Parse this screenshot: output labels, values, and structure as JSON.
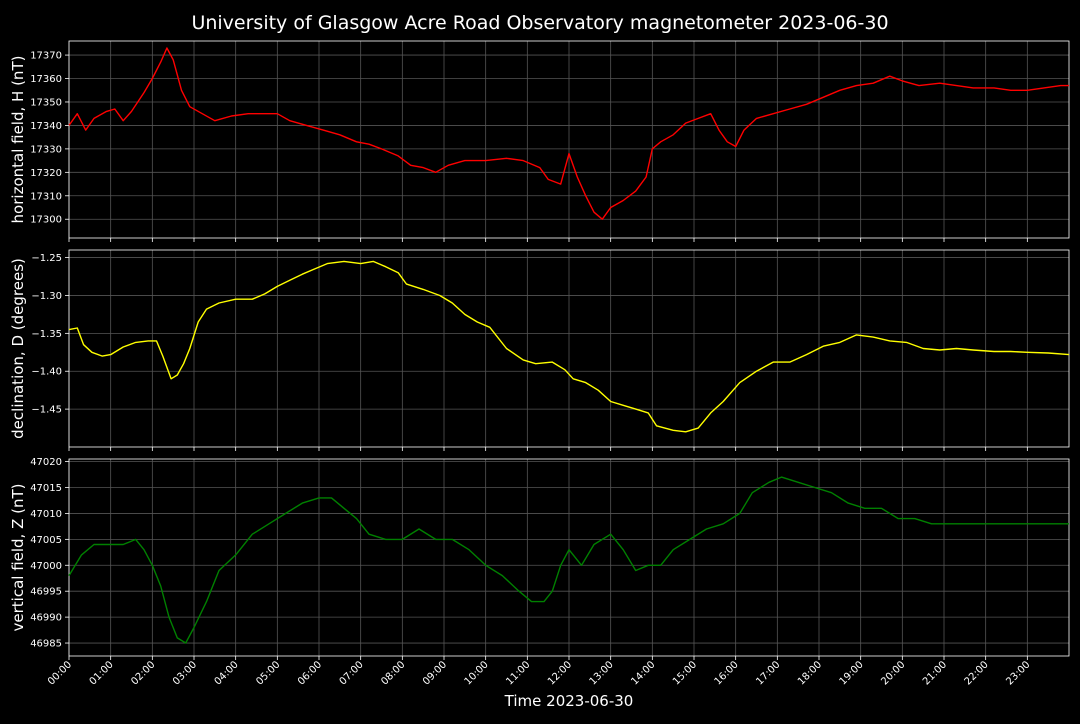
{
  "chart_data": {
    "type": "line",
    "title": "University of Glasgow Acre Road Observatory magnetometer 2023-06-30",
    "xlabel": "Time 2023-06-30",
    "x_tick_labels": [
      "00:00",
      "01:00",
      "02:00",
      "03:00",
      "04:00",
      "05:00",
      "06:00",
      "07:00",
      "08:00",
      "09:00",
      "10:00",
      "11:00",
      "12:00",
      "13:00",
      "14:00",
      "15:00",
      "16:00",
      "17:00",
      "18:00",
      "19:00",
      "20:00",
      "21:00",
      "22:00",
      "23:00"
    ],
    "xlim_hours": [
      0,
      24
    ],
    "grid": true,
    "panels": [
      {
        "ylabel": "horizontal field, H (nT)",
        "color": "#ff0000",
        "ylim": [
          17292,
          17376
        ],
        "yticks": [
          17300,
          17310,
          17320,
          17330,
          17340,
          17350,
          17360,
          17370
        ],
        "ytick_labels": [
          "17300",
          "17310",
          "17320",
          "17330",
          "17340",
          "17350",
          "17360",
          "17370"
        ],
        "points": [
          [
            0,
            17340
          ],
          [
            0.2,
            17345
          ],
          [
            0.4,
            17338
          ],
          [
            0.6,
            17343
          ],
          [
            0.9,
            17346
          ],
          [
            1.1,
            17347
          ],
          [
            1.3,
            17342
          ],
          [
            1.5,
            17346
          ],
          [
            1.8,
            17354
          ],
          [
            2.0,
            17360
          ],
          [
            2.2,
            17367
          ],
          [
            2.35,
            17373
          ],
          [
            2.5,
            17368
          ],
          [
            2.7,
            17355
          ],
          [
            2.9,
            17348
          ],
          [
            3.2,
            17345
          ],
          [
            3.5,
            17342
          ],
          [
            3.9,
            17344
          ],
          [
            4.3,
            17345
          ],
          [
            4.7,
            17345
          ],
          [
            5.0,
            17345
          ],
          [
            5.3,
            17342
          ],
          [
            5.7,
            17340
          ],
          [
            6.1,
            17338
          ],
          [
            6.5,
            17336
          ],
          [
            6.9,
            17333
          ],
          [
            7.2,
            17332
          ],
          [
            7.5,
            17330
          ],
          [
            7.9,
            17327
          ],
          [
            8.2,
            17323
          ],
          [
            8.5,
            17322
          ],
          [
            8.8,
            17320
          ],
          [
            9.1,
            17323
          ],
          [
            9.5,
            17325
          ],
          [
            10.0,
            17325
          ],
          [
            10.5,
            17326
          ],
          [
            10.9,
            17325
          ],
          [
            11.3,
            17322
          ],
          [
            11.5,
            17317
          ],
          [
            11.8,
            17315
          ],
          [
            12.0,
            17328
          ],
          [
            12.2,
            17318
          ],
          [
            12.4,
            17310
          ],
          [
            12.6,
            17303
          ],
          [
            12.8,
            17300
          ],
          [
            13.0,
            17305
          ],
          [
            13.3,
            17308
          ],
          [
            13.6,
            17312
          ],
          [
            13.85,
            17318
          ],
          [
            14.0,
            17330
          ],
          [
            14.2,
            17333
          ],
          [
            14.5,
            17336
          ],
          [
            14.8,
            17341
          ],
          [
            15.1,
            17343
          ],
          [
            15.4,
            17345
          ],
          [
            15.6,
            17338
          ],
          [
            15.8,
            17333
          ],
          [
            16.0,
            17331
          ],
          [
            16.2,
            17338
          ],
          [
            16.5,
            17343
          ],
          [
            16.9,
            17345
          ],
          [
            17.3,
            17347
          ],
          [
            17.7,
            17349
          ],
          [
            18.1,
            17352
          ],
          [
            18.5,
            17355
          ],
          [
            18.9,
            17357
          ],
          [
            19.3,
            17358
          ],
          [
            19.7,
            17361
          ],
          [
            20.0,
            17359
          ],
          [
            20.4,
            17357
          ],
          [
            20.9,
            17358
          ],
          [
            21.3,
            17357
          ],
          [
            21.7,
            17356
          ],
          [
            22.2,
            17356
          ],
          [
            22.6,
            17355
          ],
          [
            23.0,
            17355
          ],
          [
            23.4,
            17356
          ],
          [
            23.8,
            17357
          ],
          [
            24.0,
            17357
          ]
        ]
      },
      {
        "ylabel": "declination, D (degrees)",
        "color": "#ffff00",
        "ylim": [
          -1.5,
          -1.24
        ],
        "yticks": [
          -1.25,
          -1.3,
          -1.35,
          -1.4,
          -1.45
        ],
        "ytick_labels": [
          "−1.25",
          "−1.30",
          "−1.35",
          "−1.40",
          "−1.45"
        ],
        "points": [
          [
            0,
            -1.345
          ],
          [
            0.2,
            -1.343
          ],
          [
            0.35,
            -1.365
          ],
          [
            0.55,
            -1.375
          ],
          [
            0.8,
            -1.38
          ],
          [
            1.0,
            -1.378
          ],
          [
            1.3,
            -1.368
          ],
          [
            1.6,
            -1.362
          ],
          [
            1.9,
            -1.36
          ],
          [
            2.1,
            -1.36
          ],
          [
            2.25,
            -1.38
          ],
          [
            2.45,
            -1.41
          ],
          [
            2.6,
            -1.405
          ],
          [
            2.75,
            -1.39
          ],
          [
            2.9,
            -1.37
          ],
          [
            3.1,
            -1.335
          ],
          [
            3.3,
            -1.318
          ],
          [
            3.6,
            -1.31
          ],
          [
            4.0,
            -1.305
          ],
          [
            4.4,
            -1.305
          ],
          [
            4.7,
            -1.298
          ],
          [
            5.0,
            -1.288
          ],
          [
            5.3,
            -1.28
          ],
          [
            5.6,
            -1.272
          ],
          [
            5.9,
            -1.265
          ],
          [
            6.2,
            -1.258
          ],
          [
            6.6,
            -1.255
          ],
          [
            7.0,
            -1.258
          ],
          [
            7.3,
            -1.255
          ],
          [
            7.6,
            -1.262
          ],
          [
            7.9,
            -1.27
          ],
          [
            8.1,
            -1.285
          ],
          [
            8.5,
            -1.292
          ],
          [
            8.9,
            -1.3
          ],
          [
            9.2,
            -1.31
          ],
          [
            9.5,
            -1.325
          ],
          [
            9.8,
            -1.335
          ],
          [
            10.1,
            -1.342
          ],
          [
            10.5,
            -1.37
          ],
          [
            10.9,
            -1.385
          ],
          [
            11.2,
            -1.39
          ],
          [
            11.6,
            -1.388
          ],
          [
            11.9,
            -1.398
          ],
          [
            12.1,
            -1.41
          ],
          [
            12.4,
            -1.415
          ],
          [
            12.7,
            -1.425
          ],
          [
            13.0,
            -1.44
          ],
          [
            13.3,
            -1.445
          ],
          [
            13.6,
            -1.45
          ],
          [
            13.9,
            -1.455
          ],
          [
            14.1,
            -1.472
          ],
          [
            14.5,
            -1.478
          ],
          [
            14.8,
            -1.48
          ],
          [
            15.1,
            -1.475
          ],
          [
            15.4,
            -1.455
          ],
          [
            15.7,
            -1.44
          ],
          [
            16.1,
            -1.415
          ],
          [
            16.5,
            -1.4
          ],
          [
            16.9,
            -1.388
          ],
          [
            17.3,
            -1.388
          ],
          [
            17.7,
            -1.378
          ],
          [
            18.1,
            -1.367
          ],
          [
            18.5,
            -1.362
          ],
          [
            18.9,
            -1.352
          ],
          [
            19.3,
            -1.355
          ],
          [
            19.7,
            -1.36
          ],
          [
            20.1,
            -1.362
          ],
          [
            20.5,
            -1.37
          ],
          [
            20.9,
            -1.372
          ],
          [
            21.3,
            -1.37
          ],
          [
            21.7,
            -1.372
          ],
          [
            22.2,
            -1.374
          ],
          [
            22.6,
            -1.374
          ],
          [
            23.0,
            -1.375
          ],
          [
            23.5,
            -1.376
          ],
          [
            24.0,
            -1.378
          ]
        ]
      },
      {
        "ylabel": "vertical field, Z (nT)",
        "color": "#008000",
        "ylim": [
          46982.5,
          47020.5
        ],
        "yticks": [
          46985,
          46990,
          46995,
          47000,
          47005,
          47010,
          47015,
          47020
        ],
        "ytick_labels": [
          "46985",
          "46990",
          "46995",
          "47000",
          "47005",
          "47010",
          "47015",
          "47020"
        ],
        "points": [
          [
            0,
            46998
          ],
          [
            0.3,
            47002
          ],
          [
            0.6,
            47004
          ],
          [
            1.0,
            47004
          ],
          [
            1.3,
            47004
          ],
          [
            1.6,
            47005
          ],
          [
            1.8,
            47003
          ],
          [
            2.0,
            47000
          ],
          [
            2.2,
            46996
          ],
          [
            2.4,
            46990
          ],
          [
            2.6,
            46986
          ],
          [
            2.8,
            46985
          ],
          [
            3.0,
            46988
          ],
          [
            3.3,
            46993
          ],
          [
            3.6,
            46999
          ],
          [
            4.0,
            47002
          ],
          [
            4.4,
            47006
          ],
          [
            4.8,
            47008
          ],
          [
            5.2,
            47010
          ],
          [
            5.6,
            47012
          ],
          [
            6.0,
            47013
          ],
          [
            6.3,
            47013
          ],
          [
            6.6,
            47011
          ],
          [
            6.9,
            47009
          ],
          [
            7.2,
            47006
          ],
          [
            7.6,
            47005
          ],
          [
            8.0,
            47005
          ],
          [
            8.4,
            47007
          ],
          [
            8.8,
            47005
          ],
          [
            9.2,
            47005
          ],
          [
            9.6,
            47003
          ],
          [
            10.0,
            47000
          ],
          [
            10.4,
            46998
          ],
          [
            10.8,
            46995
          ],
          [
            11.1,
            46993
          ],
          [
            11.4,
            46993
          ],
          [
            11.6,
            46995
          ],
          [
            11.8,
            47000
          ],
          [
            12.0,
            47003
          ],
          [
            12.3,
            47000
          ],
          [
            12.6,
            47004
          ],
          [
            13.0,
            47006
          ],
          [
            13.3,
            47003
          ],
          [
            13.6,
            46999
          ],
          [
            13.9,
            47000
          ],
          [
            14.2,
            47000
          ],
          [
            14.5,
            47003
          ],
          [
            14.9,
            47005
          ],
          [
            15.3,
            47007
          ],
          [
            15.7,
            47008
          ],
          [
            16.1,
            47010
          ],
          [
            16.4,
            47014
          ],
          [
            16.8,
            47016
          ],
          [
            17.1,
            47017
          ],
          [
            17.5,
            47016
          ],
          [
            17.9,
            47015
          ],
          [
            18.3,
            47014
          ],
          [
            18.7,
            47012
          ],
          [
            19.1,
            47011
          ],
          [
            19.5,
            47011
          ],
          [
            19.9,
            47009
          ],
          [
            20.3,
            47009
          ],
          [
            20.7,
            47008
          ],
          [
            21.1,
            47008
          ],
          [
            21.5,
            47008
          ],
          [
            21.9,
            47008
          ],
          [
            22.3,
            47008
          ],
          [
            22.7,
            47008
          ],
          [
            23.1,
            47008
          ],
          [
            23.5,
            47008
          ],
          [
            24.0,
            47008
          ]
        ]
      }
    ]
  }
}
